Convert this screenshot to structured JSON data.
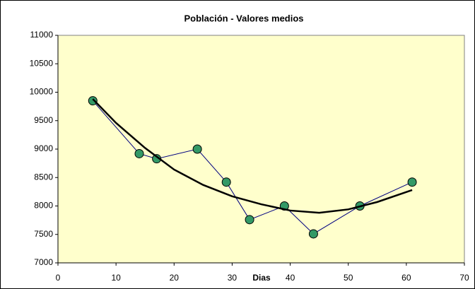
{
  "chart_data": {
    "type": "scatter",
    "title": "Población - Valores medios",
    "x_label": "Dias",
    "series": [
      {
        "x": [
          6,
          14,
          17,
          24,
          29,
          33,
          39,
          44,
          52,
          61
        ],
        "values": [
          9850,
          8920,
          8830,
          9000,
          8420,
          7760,
          8000,
          7510,
          8000,
          8420
        ],
        "color": "#000080",
        "marker_color": "#339966"
      },
      {
        "x": [
          6,
          10,
          15,
          20,
          25,
          30,
          35,
          40,
          45,
          50,
          55,
          61
        ],
        "values": [
          9880,
          9460,
          9020,
          8640,
          8370,
          8170,
          8030,
          7920,
          7880,
          7940,
          8070,
          8280
        ],
        "color": "#000000"
      }
    ],
    "xlim": [
      0,
      70
    ],
    "xticks": [
      0,
      10,
      20,
      30,
      40,
      50,
      60,
      70
    ],
    "ylim": [
      7000,
      11000
    ],
    "yticks": [
      7000,
      7500,
      8000,
      8500,
      9000,
      9500,
      10000,
      10500,
      11000
    ],
    "plot_background": "#FFFFCC"
  }
}
